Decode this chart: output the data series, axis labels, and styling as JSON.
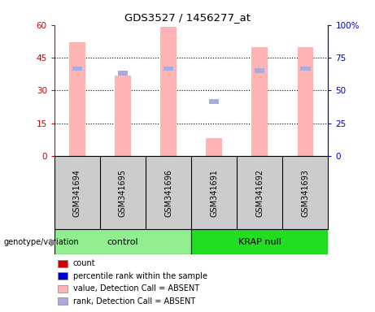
{
  "title": "GDS3527 / 1456277_at",
  "samples": [
    "GSM341694",
    "GSM341695",
    "GSM341696",
    "GSM341691",
    "GSM341692",
    "GSM341693"
  ],
  "groups": [
    {
      "label": "control",
      "indices": [
        0,
        1,
        2
      ],
      "color": "#90ee90"
    },
    {
      "label": "KRAP null",
      "indices": [
        3,
        4,
        5
      ],
      "color": "#22dd22"
    }
  ],
  "bar_values": [
    52,
    37,
    59,
    8,
    50,
    50
  ],
  "bar_color": "#ffb3b3",
  "rank_values": [
    40,
    38,
    40,
    25,
    39,
    40
  ],
  "rank_color": "#aaaadd",
  "ylim_left": [
    0,
    60
  ],
  "ylim_right": [
    0,
    100
  ],
  "yticks_left": [
    0,
    15,
    30,
    45,
    60
  ],
  "ytick_labels_left": [
    "0",
    "15",
    "30",
    "45",
    "60"
  ],
  "yticks_right": [
    0,
    25,
    50,
    75,
    100
  ],
  "ytick_labels_right": [
    "0",
    "25",
    "50",
    "75",
    "100%"
  ],
  "left_axis_color": "#cc0000",
  "right_axis_color": "#0000cc",
  "dotted_lines": [
    15,
    30,
    45
  ],
  "bar_width": 0.35,
  "background_color": "#ffffff",
  "label_area_color": "#cccccc",
  "legend_items": [
    {
      "color": "#cc0000",
      "label": "count"
    },
    {
      "color": "#0000cc",
      "label": "percentile rank within the sample"
    },
    {
      "color": "#ffb3b3",
      "label": "value, Detection Call = ABSENT"
    },
    {
      "color": "#aaaadd",
      "label": "rank, Detection Call = ABSENT"
    }
  ],
  "genotype_label": "genotype/variation"
}
